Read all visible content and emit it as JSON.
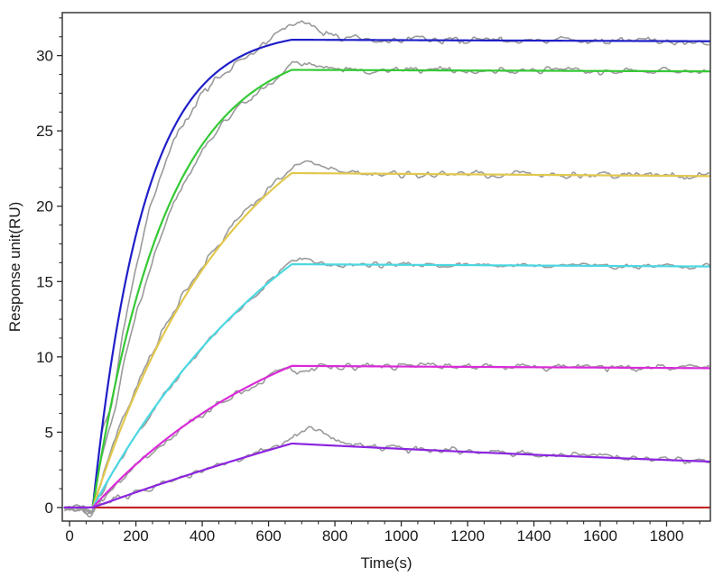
{
  "chart_data": {
    "type": "line",
    "title": "",
    "xlabel": "Time(s)",
    "ylabel": "Response unit(RU)",
    "xlim": [
      -22,
      1932
    ],
    "ylim": [
      -0.9,
      32.85
    ],
    "x_major_ticks": [
      0,
      200,
      400,
      600,
      800,
      1000,
      1200,
      1400,
      1600,
      1800
    ],
    "x_minor_step_s": 50,
    "y_major_ticks": [
      0,
      5,
      10,
      15,
      20,
      25,
      30
    ],
    "y_minor_step_RU": 1.25,
    "grid": false,
    "legend": "none",
    "phases": {
      "baseline_start_s": 0,
      "injection_start_s": 70,
      "association_end_s": 670,
      "end_s": 1930
    },
    "raw_trace_color": "#9a9a9a",
    "raw_baseline_dip": {
      "center_s": 60,
      "sigma_s": 9,
      "height_RU": -0.4
    },
    "axis_color": "#2b2b2b",
    "series": [
      {
        "id": "blue",
        "color": "#1f1fc8",
        "plateau_RU": 31.05,
        "end_RU": 30.95,
        "kobs_per_s": 0.0065,
        "fit_points": [
          [
            70,
            0
          ],
          [
            200,
            18.1
          ],
          [
            300,
            24.6
          ],
          [
            400,
            28.0
          ],
          [
            500,
            29.8
          ],
          [
            600,
            30.7
          ],
          [
            670,
            31.05
          ],
          [
            1000,
            31.0
          ],
          [
            1930,
            30.95
          ]
        ],
        "raw_overshoot": {
          "center_s": 690,
          "sigma_s": 60,
          "height_RU": 1.05
        },
        "raw_lag_s": 22,
        "raw_noise_RU": 0.22,
        "seed": 11
      },
      {
        "id": "green",
        "color": "#35c935",
        "plateau_RU": 29.05,
        "end_RU": 28.95,
        "kobs_per_s": 0.0045,
        "fit_points": [
          [
            70,
            0
          ],
          [
            200,
            13.8
          ],
          [
            300,
            20.1
          ],
          [
            400,
            24.1
          ],
          [
            500,
            26.6
          ],
          [
            600,
            28.3
          ],
          [
            670,
            29.05
          ],
          [
            1930,
            28.95
          ]
        ],
        "raw_overshoot": {
          "center_s": 700,
          "sigma_s": 50,
          "height_RU": 0.5
        },
        "raw_lag_s": 14,
        "raw_noise_RU": 0.2,
        "seed": 22
      },
      {
        "id": "yellow",
        "color": "#e2c84e",
        "plateau_RU": 22.2,
        "end_RU": 22.0,
        "kobs_per_s": 0.0023,
        "fit_points": [
          [
            70,
            0
          ],
          [
            200,
            7.7
          ],
          [
            300,
            12.2
          ],
          [
            400,
            15.8
          ],
          [
            500,
            18.6
          ],
          [
            600,
            20.9
          ],
          [
            670,
            22.2
          ],
          [
            1930,
            22.0
          ]
        ],
        "raw_overshoot": {
          "center_s": 720,
          "sigma_s": 55,
          "height_RU": 0.65
        },
        "raw_lag_s": -8,
        "raw_noise_RU": 0.22,
        "seed": 33
      },
      {
        "id": "cyan",
        "color": "#4cd8e2",
        "plateau_RU": 16.15,
        "end_RU": 16.0,
        "kobs_per_s": 0.0015,
        "fit_points": [
          [
            70,
            0
          ],
          [
            200,
            4.8
          ],
          [
            300,
            7.9
          ],
          [
            400,
            10.6
          ],
          [
            500,
            12.9
          ],
          [
            600,
            14.9
          ],
          [
            670,
            16.15
          ],
          [
            1930,
            16.0
          ]
        ],
        "raw_overshoot": {
          "center_s": 690,
          "sigma_s": 45,
          "height_RU": 0.3
        },
        "raw_lag_s": 2,
        "raw_noise_RU": 0.16,
        "seed": 44
      },
      {
        "id": "magenta",
        "color": "#d92ad9",
        "plateau_RU": 9.4,
        "end_RU": 9.25,
        "kobs_per_s": 0.0016,
        "fit_points": [
          [
            70,
            0
          ],
          [
            200,
            2.9
          ],
          [
            300,
            4.7
          ],
          [
            400,
            6.2
          ],
          [
            500,
            7.6
          ],
          [
            600,
            8.7
          ],
          [
            670,
            9.4
          ],
          [
            1930,
            9.25
          ]
        ],
        "raw_overshoot": {
          "center_s": 695,
          "sigma_s": 22,
          "height_RU": -0.55
        },
        "raw_lag_s": 8,
        "raw_noise_RU": 0.22,
        "seed": 55
      },
      {
        "id": "purple",
        "color": "#8c25e0",
        "plateau_RU": 4.25,
        "end_RU": 3.05,
        "kobs_per_s": 0.0004,
        "fit_points": [
          [
            70,
            0
          ],
          [
            200,
            1.0
          ],
          [
            300,
            1.75
          ],
          [
            400,
            2.5
          ],
          [
            500,
            3.15
          ],
          [
            600,
            3.8
          ],
          [
            670,
            4.25
          ],
          [
            1200,
            3.7
          ],
          [
            1930,
            3.05
          ]
        ],
        "raw_overshoot": {
          "center_s": 735,
          "sigma_s": 52,
          "height_RU": 1.0
        },
        "raw_lag_s": 0,
        "raw_noise_RU": 0.22,
        "seed": 66
      }
    ],
    "control": {
      "id": "red-control",
      "color": "#c42222",
      "value_RU": 0,
      "start_s": 70,
      "end_s": 1930
    }
  }
}
